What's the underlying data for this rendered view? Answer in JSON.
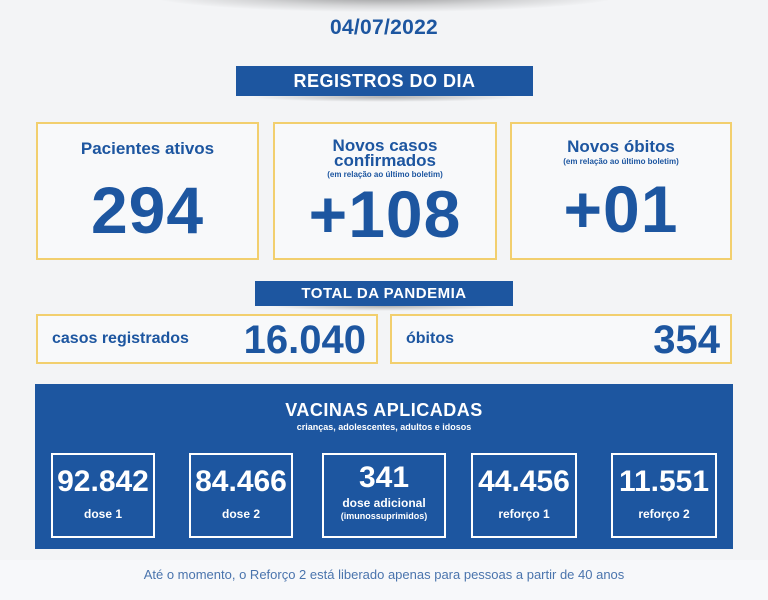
{
  "date": "04/07/2022",
  "header": {
    "registros_title": "REGISTROS DO DIA",
    "total_title": "TOTAL DA PANDEMIA"
  },
  "daily": {
    "active": {
      "label": "Pacientes ativos",
      "value": "294"
    },
    "new_cases": {
      "label_line1": "Novos casos",
      "label_line2": "confirmados",
      "note": "(em relação ao último boletim)",
      "value": "+108"
    },
    "new_deaths": {
      "label": "Novos óbitos",
      "note": "(em relação ao último boletim)",
      "value": "+01"
    }
  },
  "totals": {
    "cases": {
      "label": "casos registrados",
      "value": "16.040"
    },
    "deaths": {
      "label": "óbitos",
      "value": "354"
    }
  },
  "vaccines": {
    "title": "VACINAS APLICADAS",
    "subtitle": "crianças, adolescentes, adultos e idosos",
    "items": [
      {
        "value": "92.842",
        "label": "dose 1"
      },
      {
        "value": "84.466",
        "label": "dose 2"
      },
      {
        "value": "341",
        "label": "dose adicional",
        "label2": "(imunossuprimidos)"
      },
      {
        "value": "44.456",
        "label": "reforço 1"
      },
      {
        "value": "11.551",
        "label": "reforço 2"
      }
    ]
  },
  "footer": "Até o momento, o Reforço 2 está liberado apenas para pessoas a partir de 40 anos",
  "colors": {
    "primary": "#1d56a0",
    "border": "#f2cf6e",
    "background": "#f3f4f6"
  }
}
